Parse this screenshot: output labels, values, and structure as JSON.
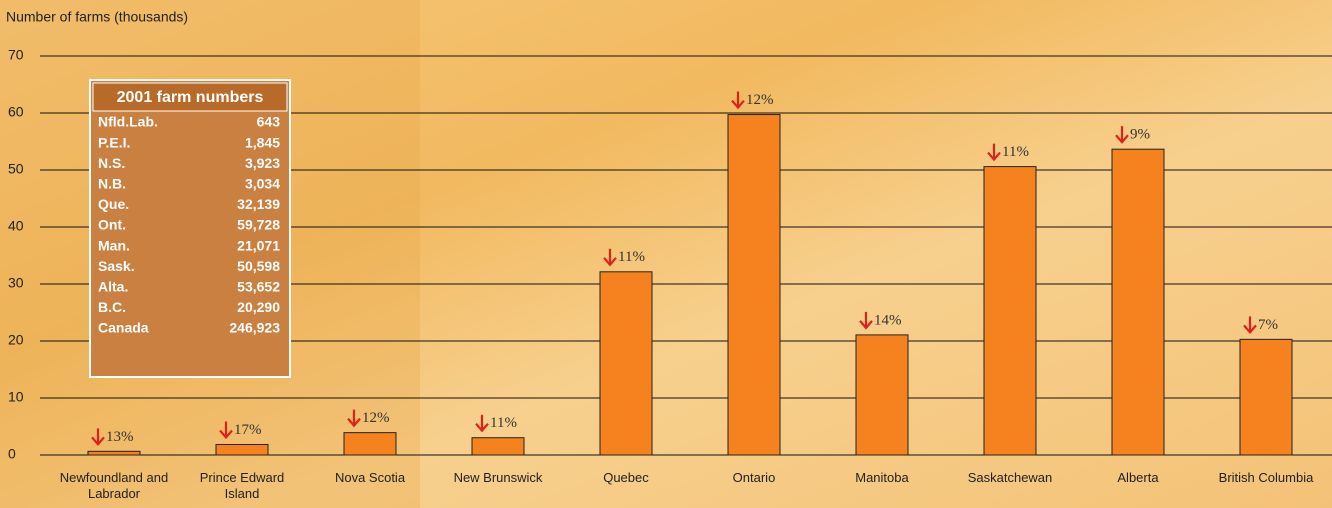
{
  "chart_data": {
    "type": "bar",
    "y_axis_label": "Number of farms (thousands)",
    "categories": [
      "Newfoundland and Labrador",
      "Prince Edward Island",
      "Nova Scotia",
      "New Brunswick",
      "Quebec",
      "Ontario",
      "Manitoba",
      "Saskatchewan",
      "Alberta",
      "British Columbia"
    ],
    "values": [
      0.643,
      1.845,
      3.923,
      3.034,
      32.139,
      59.728,
      21.071,
      50.598,
      53.652,
      20.29
    ],
    "change_labels": [
      "13%",
      "17%",
      "12%",
      "11%",
      "11%",
      "12%",
      "14%",
      "11%",
      "9%",
      "7%"
    ],
    "color": "#f5821f",
    "ylim": [
      0,
      70
    ],
    "yticks": [
      0,
      10,
      20,
      30,
      40,
      50,
      60,
      70
    ],
    "grid": true,
    "table": {
      "title": "2001 farm numbers",
      "rows": [
        [
          "Nfld.Lab.",
          "643"
        ],
        [
          "P.E.I.",
          "1,845"
        ],
        [
          "N.S.",
          "3,923"
        ],
        [
          "N.B.",
          "3,034"
        ],
        [
          "Que.",
          "32,139"
        ],
        [
          "Ont.",
          "59,728"
        ],
        [
          "Man.",
          "21,071"
        ],
        [
          "Sask.",
          "50,598"
        ],
        [
          "Alta.",
          "53,652"
        ],
        [
          "B.C.",
          "20,290"
        ],
        [
          "Canada",
          "246,923"
        ]
      ]
    }
  }
}
